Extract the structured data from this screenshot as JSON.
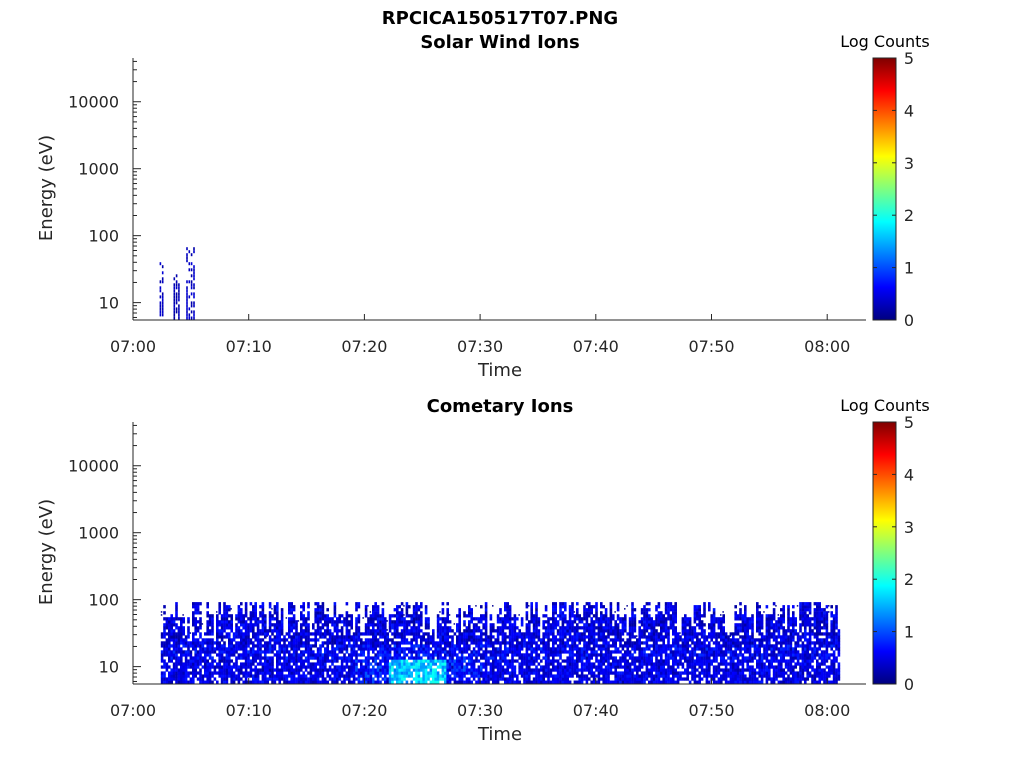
{
  "figure_title": "RPCICA150517T07.PNG",
  "colors": {
    "colormap": [
      "#00007f",
      "#0000ff",
      "#007fff",
      "#00ffff",
      "#7fff7f",
      "#ffff00",
      "#ff7f00",
      "#ff0000",
      "#7f0000"
    ],
    "axis": "#262626"
  },
  "chart_data": [
    {
      "type": "heatmap",
      "title": "Solar Wind Ions",
      "xlabel": "Time",
      "ylabel": "Energy (eV)",
      "xticks": [
        "07:00",
        "07:10",
        "07:20",
        "07:30",
        "07:40",
        "07:50",
        "08:00"
      ],
      "yticks": [
        "10",
        "100",
        "1000",
        "10000"
      ],
      "y_scale": "log",
      "ylim": [
        5.5,
        45000
      ],
      "xlim_minutes": [
        0,
        63.5
      ],
      "colorbar": {
        "label": "Log Counts",
        "ticks": [
          "0",
          "1",
          "2",
          "3",
          "4",
          "5"
        ],
        "range": [
          0,
          5
        ]
      },
      "activity_windows": [
        {
          "start_min": 2.3,
          "end_min": 2.6,
          "max_energy_ev": 40,
          "mean_log_counts": 0.2
        },
        {
          "start_min": 3.5,
          "end_min": 4.0,
          "max_energy_ev": 25,
          "mean_log_counts": 0.1
        },
        {
          "start_min": 4.6,
          "end_min": 5.3,
          "max_energy_ev": 65,
          "mean_log_counts": 0.2
        }
      ]
    },
    {
      "type": "heatmap",
      "title": "Cometary Ions",
      "xlabel": "Time",
      "ylabel": "Energy (eV)",
      "xticks": [
        "07:00",
        "07:10",
        "07:20",
        "07:30",
        "07:40",
        "07:50",
        "08:00"
      ],
      "yticks": [
        "10",
        "100",
        "1000",
        "10000"
      ],
      "y_scale": "log",
      "ylim": [
        5.5,
        45000
      ],
      "xlim_minutes": [
        0,
        63.5
      ],
      "colorbar": {
        "label": "Log Counts",
        "ticks": [
          "0",
          "1",
          "2",
          "3",
          "4",
          "5"
        ],
        "range": [
          0,
          5
        ]
      },
      "data_extent_minutes": [
        2.4,
        61.0
      ],
      "max_energy_ev": 80,
      "peak_log_counts": 2.0,
      "peak_region_minutes": [
        22,
        27
      ]
    }
  ]
}
